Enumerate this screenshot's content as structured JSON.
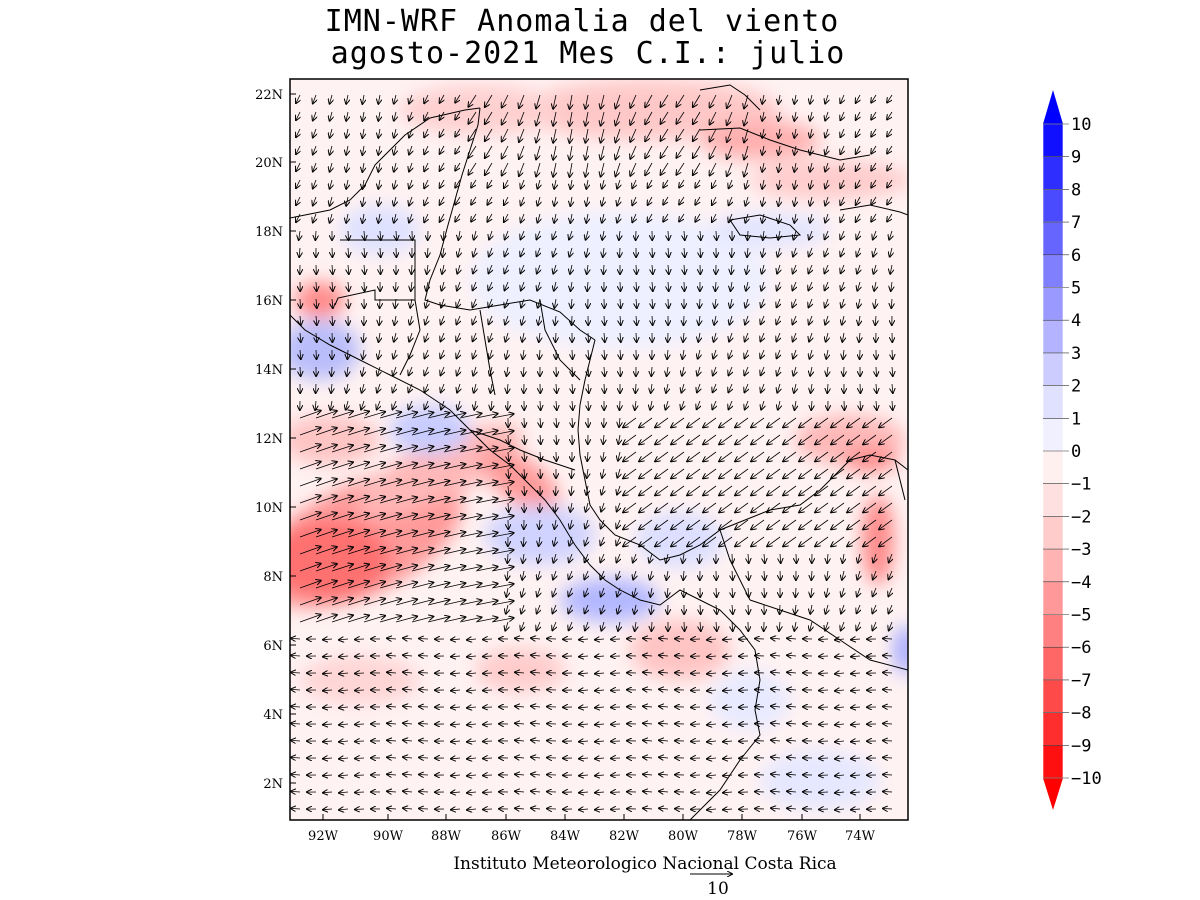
{
  "title": {
    "line1": "IMN-WRF Anomalia del viento",
    "line2": "agosto-2021 Mes C.I.: julio"
  },
  "credit": "Instituto Meteorologico Nacional Costa Rica",
  "vector_reference": {
    "magnitude_label": "10"
  },
  "lon_ticks": [
    "92W",
    "90W",
    "88W",
    "86W",
    "84W",
    "82W",
    "80W",
    "78W",
    "76W",
    "74W"
  ],
  "lat_ticks": [
    "22N",
    "20N",
    "18N",
    "16N",
    "14N",
    "12N",
    "10N",
    "8N",
    "6N",
    "4N",
    "2N"
  ],
  "colorbar": {
    "labels": [
      "10",
      "9",
      "8",
      "7",
      "6",
      "5",
      "4",
      "3",
      "2",
      "1",
      "0",
      "-1",
      "-2",
      "-3",
      "-4",
      "-5",
      "-6",
      "-7",
      "-8",
      "-9",
      "-10"
    ],
    "colors": [
      "#1010ff",
      "#2e2eff",
      "#4a4aff",
      "#6666ff",
      "#8080ff",
      "#9999ff",
      "#b3b3ff",
      "#ccccff",
      "#e0e0ff",
      "#f0f0ff",
      "#fff0f0",
      "#ffe0e0",
      "#ffcccc",
      "#ffb3b3",
      "#ff9999",
      "#ff8080",
      "#ff6666",
      "#ff4a4a",
      "#ff2e2e",
      "#ff1010"
    ],
    "top_arrow_color": "#0000ff",
    "bottom_arrow_color": "#ff0000"
  }
}
